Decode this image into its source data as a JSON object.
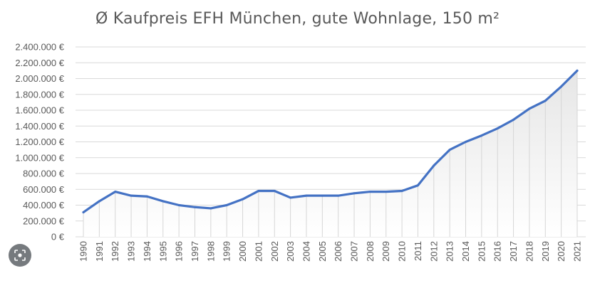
{
  "chart_data": {
    "type": "area",
    "title": "Ø Kaufpreis EFH München, gute Wohnlage, 150 m²",
    "xlabel": "",
    "ylabel": "",
    "ylim": [
      0,
      2400000
    ],
    "yticks": [
      "0 €",
      "200.000 €",
      "400.000 €",
      "600.000 €",
      "800.000 €",
      "1.000.000 €",
      "1.200.000 €",
      "1.400.000 €",
      "1.600.000 €",
      "1.800.000 €",
      "2.000.000 €",
      "2.200.000 €",
      "2.400.000 €"
    ],
    "categories": [
      "1990",
      "1991",
      "1992",
      "1993",
      "1994",
      "1995",
      "1996",
      "1997",
      "1998",
      "1999",
      "2000",
      "2001",
      "2002",
      "2003",
      "2004",
      "2005",
      "2006",
      "2007",
      "2008",
      "2009",
      "2010",
      "2011",
      "2012",
      "2013",
      "2014",
      "2015",
      "2016",
      "2017",
      "2018",
      "2019",
      "2020",
      "2021"
    ],
    "values": [
      310000,
      450000,
      570000,
      520000,
      510000,
      450000,
      400000,
      375000,
      360000,
      400000,
      475000,
      580000,
      580000,
      495000,
      520000,
      520000,
      520000,
      550000,
      570000,
      570000,
      580000,
      650000,
      900000,
      1100000,
      1200000,
      1280000,
      1370000,
      1480000,
      1620000,
      1720000,
      1900000,
      2100000
    ],
    "grid": true,
    "legend": "none",
    "colors": {
      "line": "#4472c4",
      "grid": "#d9d9d9",
      "area_top": "#e9e9e9",
      "area_bottom": "#ffffff"
    }
  },
  "overlay": {
    "lens_icon": "image-search-icon"
  }
}
